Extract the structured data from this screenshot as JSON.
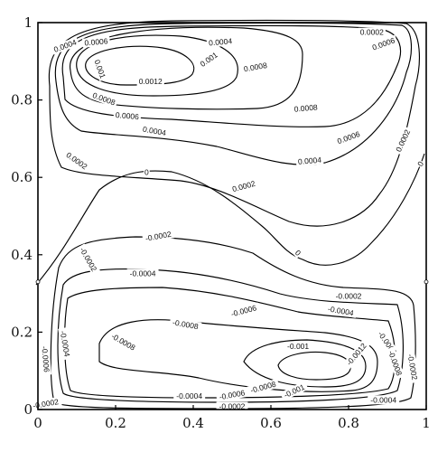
{
  "chart_data": {
    "type": "contour",
    "title": "",
    "xlabel": "",
    "ylabel": "",
    "xlim": [
      0,
      1
    ],
    "ylim": [
      0,
      1
    ],
    "grid": false,
    "x_ticks": [
      "0",
      "0.2",
      "0.4",
      "0.6",
      "0.8",
      "1"
    ],
    "y_ticks": [
      "0",
      "0.2",
      "0.4",
      "0.6",
      "0.8",
      "1"
    ],
    "upper_cell": {
      "sign": "positive",
      "center": [
        0.28,
        0.9
      ],
      "levels": [
        "0.0002",
        "0.0004",
        "0.0006",
        "0.0008",
        "0.001",
        "0.0012"
      ]
    },
    "lower_cell": {
      "sign": "negative",
      "center": [
        0.73,
        0.12
      ],
      "levels": [
        "-0.0002",
        "-0.0004",
        "-0.0006",
        "-0.0008",
        "-0.001",
        "-0.0012"
      ]
    },
    "zero_contour_label": "0",
    "contour_labels": [
      {
        "text": "0.0004",
        "x": 0.07,
        "y": 0.94,
        "rot": -20
      },
      {
        "text": "0.0006",
        "x": 0.15,
        "y": 0.95,
        "rot": -5
      },
      {
        "text": "0.0004",
        "x": 0.47,
        "y": 0.95,
        "rot": -5
      },
      {
        "text": "0.0002",
        "x": 0.86,
        "y": 0.975,
        "rot": 0
      },
      {
        "text": "0.0006",
        "x": 0.89,
        "y": 0.945,
        "rot": -20
      },
      {
        "text": "0.001",
        "x": 0.44,
        "y": 0.905,
        "rot": -35
      },
      {
        "text": "0.0008",
        "x": 0.56,
        "y": 0.885,
        "rot": -10
      },
      {
        "text": "0.001",
        "x": 0.16,
        "y": 0.88,
        "rot": 70
      },
      {
        "text": "0.0012",
        "x": 0.29,
        "y": 0.848,
        "rot": 0
      },
      {
        "text": "0.0008",
        "x": 0.17,
        "y": 0.803,
        "rot": 20
      },
      {
        "text": "0.0008",
        "x": 0.69,
        "y": 0.779,
        "rot": -5
      },
      {
        "text": "0.0006",
        "x": 0.23,
        "y": 0.759,
        "rot": 5
      },
      {
        "text": "0.0004",
        "x": 0.3,
        "y": 0.72,
        "rot": 10
      },
      {
        "text": "0.0006",
        "x": 0.8,
        "y": 0.703,
        "rot": -20
      },
      {
        "text": "0.0002",
        "x": 0.94,
        "y": 0.695,
        "rot": -65
      },
      {
        "text": "0.0002",
        "x": 0.1,
        "y": 0.643,
        "rot": 35
      },
      {
        "text": "0.0004",
        "x": 0.7,
        "y": 0.643,
        "rot": -5
      },
      {
        "text": "0",
        "x": 0.28,
        "y": 0.613,
        "rot": 0
      },
      {
        "text": "0.0002",
        "x": 0.53,
        "y": 0.577,
        "rot": -15
      },
      {
        "text": "0",
        "x": 0.985,
        "y": 0.635,
        "rot": -60
      },
      {
        "text": "-0.0002",
        "x": 0.31,
        "y": 0.448,
        "rot": -10
      },
      {
        "text": "-0.0002",
        "x": 0.13,
        "y": 0.388,
        "rot": 60
      },
      {
        "text": "0",
        "x": 0.67,
        "y": 0.405,
        "rot": 45
      },
      {
        "text": "-0.0004",
        "x": 0.27,
        "y": 0.352,
        "rot": 0
      },
      {
        "text": "-0.0002",
        "x": 0.8,
        "y": 0.293,
        "rot": 0
      },
      {
        "text": "-0.0006",
        "x": 0.53,
        "y": 0.255,
        "rot": -15
      },
      {
        "text": "-0.0004",
        "x": 0.78,
        "y": 0.255,
        "rot": 10
      },
      {
        "text": "-0.0008",
        "x": 0.38,
        "y": 0.22,
        "rot": 10
      },
      {
        "text": "-0.0008",
        "x": 0.22,
        "y": 0.175,
        "rot": 30
      },
      {
        "text": "-0.0006",
        "x": 0.9,
        "y": 0.172,
        "rot": 55
      },
      {
        "text": "-0.0004",
        "x": 0.07,
        "y": 0.17,
        "rot": 80
      },
      {
        "text": "-0.001",
        "x": 0.67,
        "y": 0.163,
        "rot": 0
      },
      {
        "text": "-0.0012",
        "x": 0.82,
        "y": 0.143,
        "rot": -50
      },
      {
        "text": "-0.0008",
        "x": 0.92,
        "y": 0.12,
        "rot": 70
      },
      {
        "text": "-0.0002",
        "x": 0.965,
        "y": 0.11,
        "rot": 80
      },
      {
        "text": "-0.0006",
        "x": 0.02,
        "y": 0.13,
        "rot": 85
      },
      {
        "text": "-0.0008",
        "x": 0.58,
        "y": 0.058,
        "rot": -15
      },
      {
        "text": "-0.001",
        "x": 0.66,
        "y": 0.048,
        "rot": -25
      },
      {
        "text": "-0.0004",
        "x": 0.39,
        "y": 0.035,
        "rot": 0
      },
      {
        "text": "-0.0006",
        "x": 0.5,
        "y": 0.038,
        "rot": -10
      },
      {
        "text": "-0.0004",
        "x": 0.89,
        "y": 0.025,
        "rot": 0
      },
      {
        "text": "-0.0002",
        "x": 0.5,
        "y": 0.008,
        "rot": 0
      },
      {
        "text": "-0.0002",
        "x": 0.02,
        "y": 0.015,
        "rot": -10
      }
    ]
  }
}
